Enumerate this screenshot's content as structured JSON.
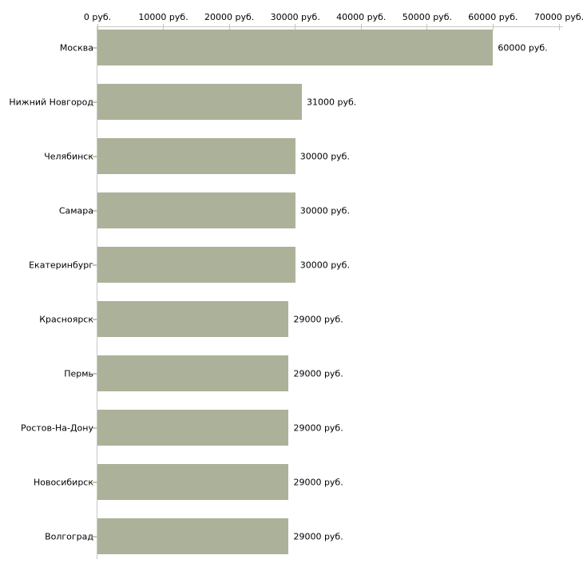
{
  "chart_data": {
    "type": "bar",
    "orientation": "horizontal",
    "title": "",
    "xlabel": "",
    "ylabel": "",
    "categories": [
      "Москва",
      "Нижний Новгород",
      "Челябинск",
      "Самара",
      "Екатеринбург",
      "Красноярск",
      "Пермь",
      "Ростов-На-Дону",
      "Новосибирск",
      "Волгоград"
    ],
    "values": [
      60000,
      31000,
      30000,
      30000,
      30000,
      29000,
      29000,
      29000,
      29000,
      29000
    ],
    "value_labels": [
      "60000 руб.",
      "31000 руб.",
      "30000 руб.",
      "30000 руб.",
      "30000 руб.",
      "29000 руб.",
      "29000 руб.",
      "29000 руб.",
      "29000 руб.",
      "29000 руб."
    ],
    "x_tick_values": [
      0,
      10000,
      20000,
      30000,
      40000,
      50000,
      60000,
      70000
    ],
    "x_tick_labels": [
      "0 руб.",
      "10000 руб.",
      "20000 руб.",
      "30000 руб.",
      "40000 руб.",
      "50000 руб.",
      "60000 руб.",
      "70000 руб."
    ],
    "xlim": [
      0,
      70000
    ],
    "currency_suffix": "руб.",
    "grid": false,
    "legend": false,
    "colors": {
      "bar": "#acb299",
      "axis_line": "#c8c8c8",
      "tick_mark": "#c9c6a3",
      "text": "#000000",
      "background": "#ffffff"
    }
  }
}
